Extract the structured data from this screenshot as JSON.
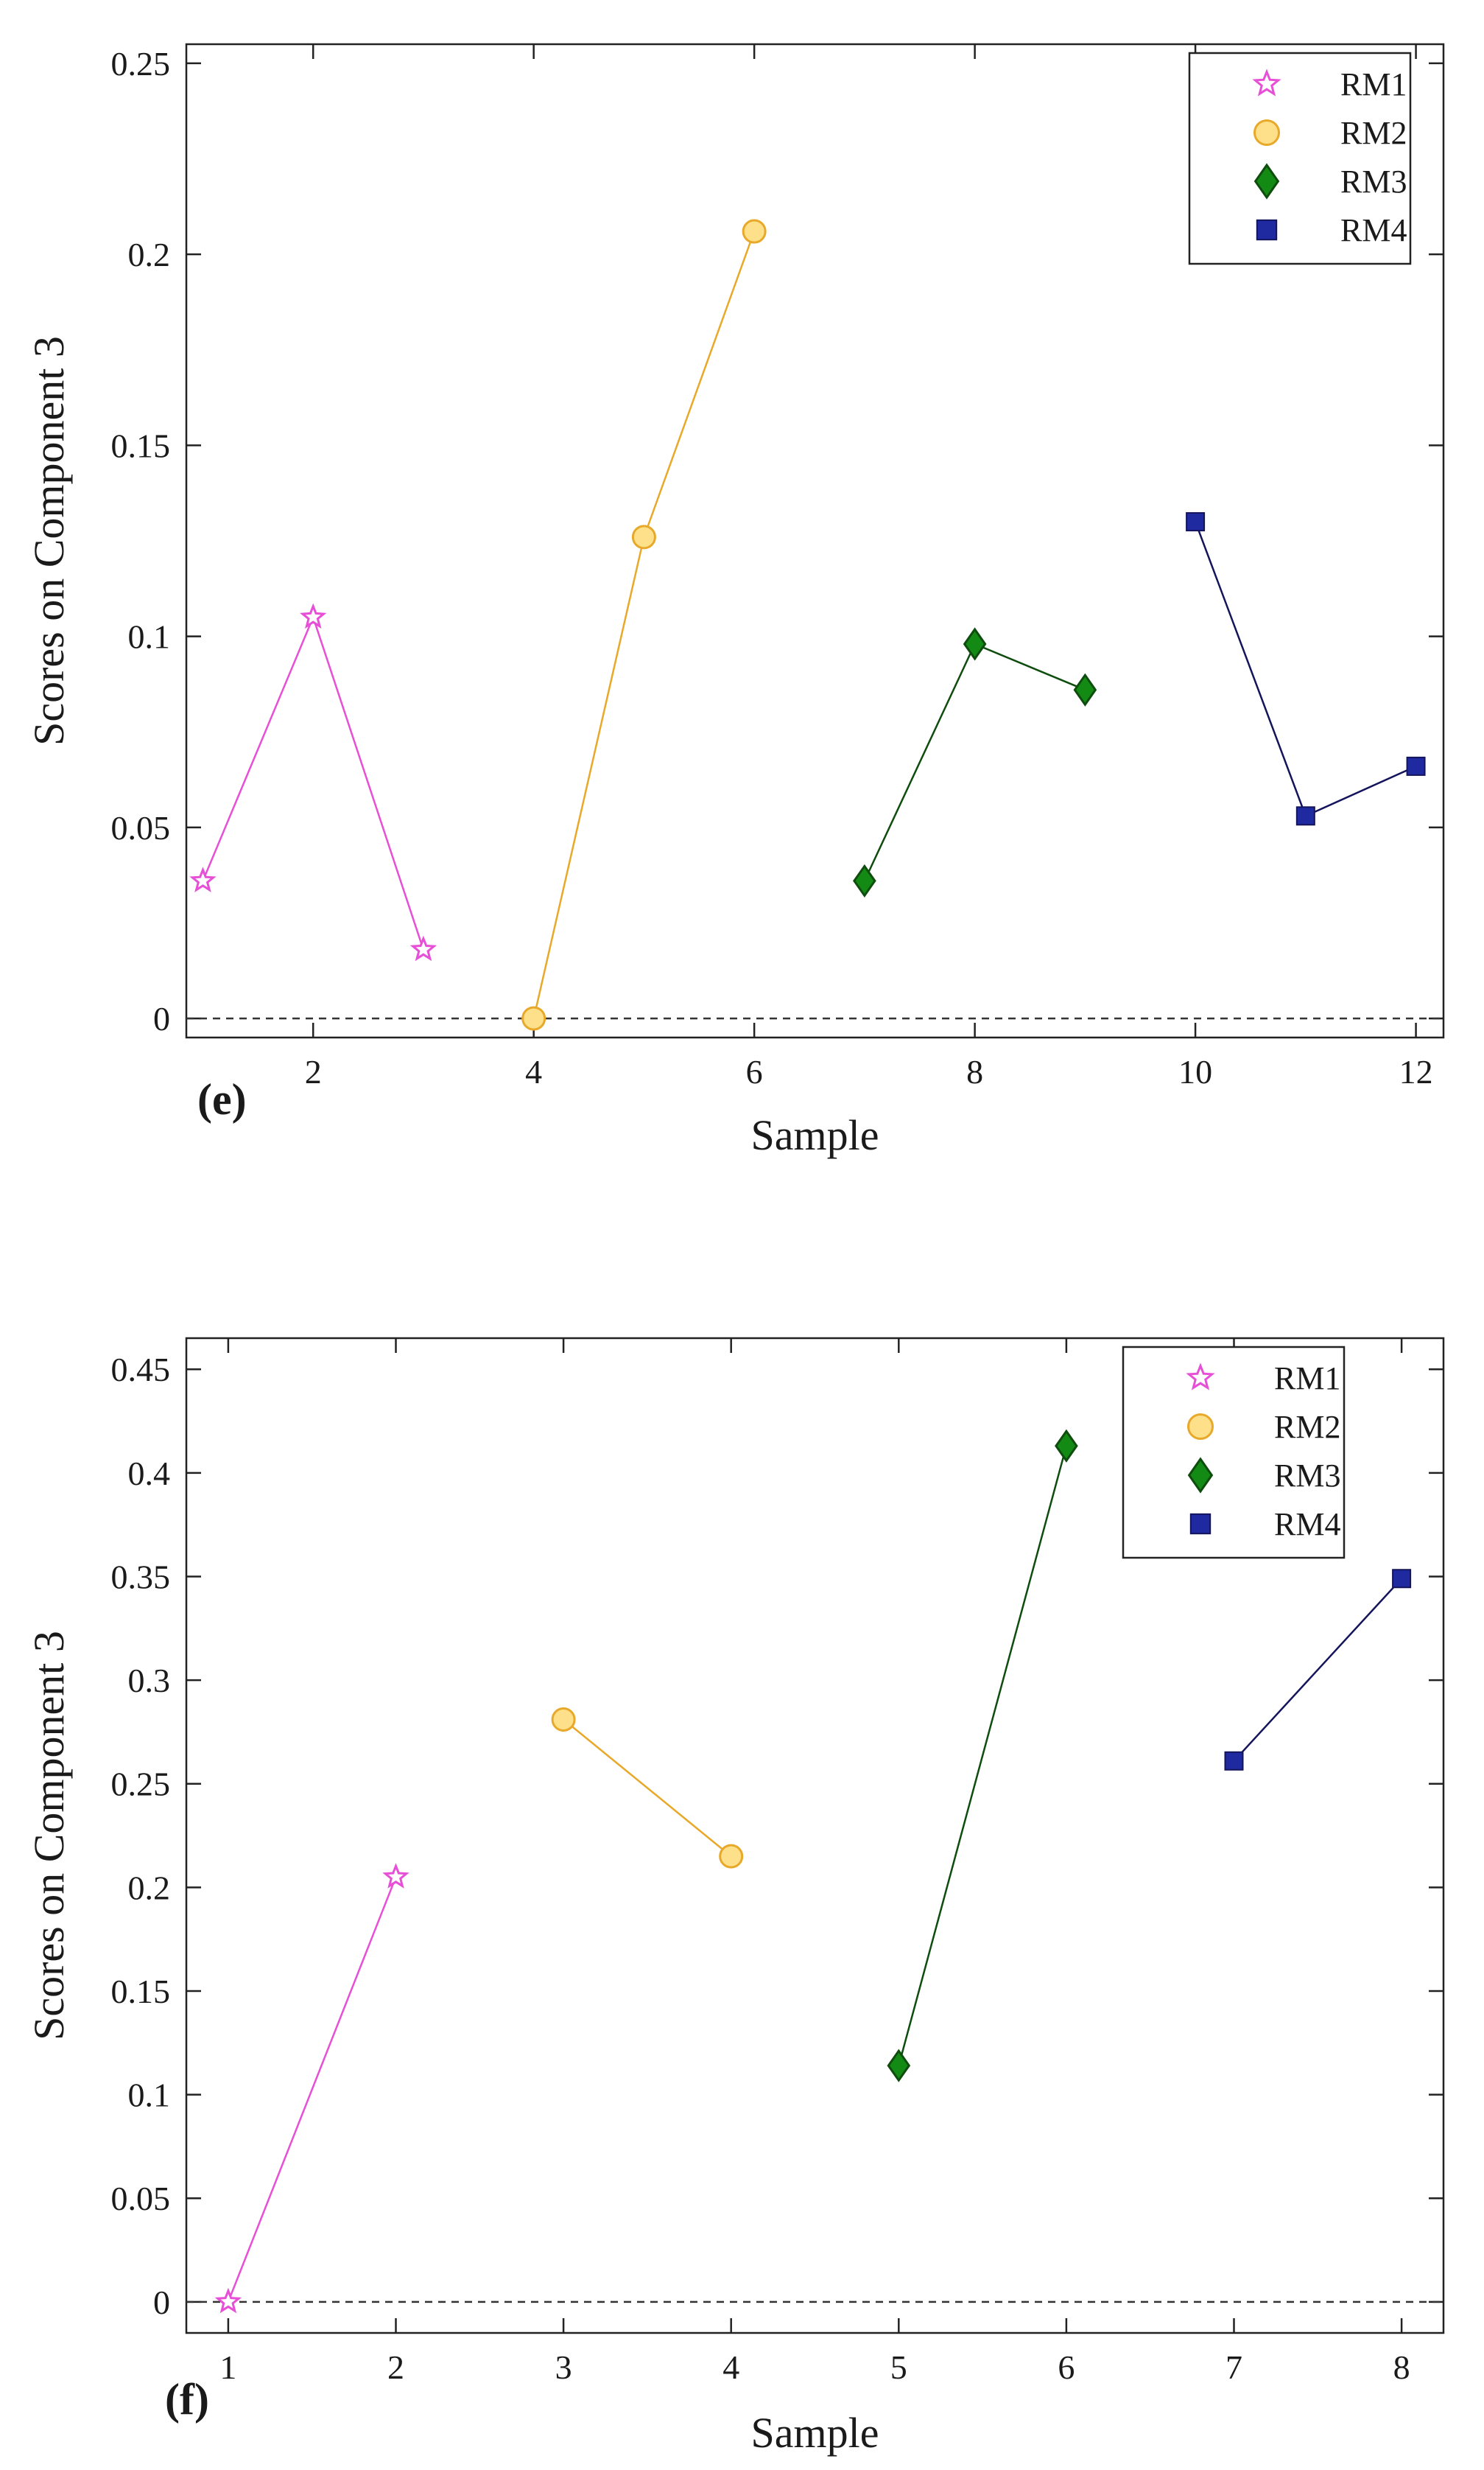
{
  "chart_data": [
    {
      "type": "line",
      "panel_label": "(e)",
      "xlabel": "Sample",
      "ylabel": "Scores on Component 3",
      "xlim": [
        0.85,
        12.25
      ],
      "ylim": [
        -0.005,
        0.255
      ],
      "xticks": [
        2,
        4,
        6,
        8,
        10,
        12
      ],
      "xtick_labels": [
        "2",
        "4",
        "6",
        "8",
        "10",
        "12"
      ],
      "yticks": [
        0,
        0.05,
        0.1,
        0.15,
        0.2,
        0.25
      ],
      "ytick_labels": [
        "0",
        "0.05",
        "0.1",
        "0.15",
        "0.2",
        "0.25"
      ],
      "zero_line": true,
      "legend_position": "top-right",
      "series": [
        {
          "name": "RM1",
          "marker": "star",
          "color": "#e64fd6",
          "fill": "#ffffff",
          "x": [
            1,
            2,
            3
          ],
          "y": [
            0.036,
            0.105,
            0.018
          ]
        },
        {
          "name": "RM2",
          "marker": "circle",
          "color": "#e8a92a",
          "fill": "#ffe08a",
          "x": [
            4,
            5,
            6
          ],
          "y": [
            0.0,
            0.126,
            0.206
          ]
        },
        {
          "name": "RM3",
          "marker": "diamond",
          "color": "#0e4d0e",
          "fill": "#138a13",
          "x": [
            7,
            8,
            9
          ],
          "y": [
            0.036,
            0.098,
            0.086
          ]
        },
        {
          "name": "RM4",
          "marker": "square",
          "color": "#14145c",
          "fill": "#1f2aa0",
          "x": [
            10,
            11,
            12
          ],
          "y": [
            0.13,
            0.053,
            0.066
          ]
        }
      ]
    },
    {
      "type": "line",
      "panel_label": "(f)",
      "xlabel": "Sample",
      "ylabel": "Scores on Component 3",
      "xlim": [
        0.75,
        8.25
      ],
      "ylim": [
        -0.015,
        0.465
      ],
      "xticks": [
        1,
        2,
        3,
        4,
        5,
        6,
        7,
        8
      ],
      "xtick_labels": [
        "1",
        "2",
        "3",
        "4",
        "5",
        "6",
        "7",
        "8"
      ],
      "yticks": [
        0,
        0.05,
        0.1,
        0.15,
        0.2,
        0.25,
        0.3,
        0.35,
        0.4,
        0.45
      ],
      "ytick_labels": [
        "0",
        "0.05",
        "0.1",
        "0.15",
        "0.2",
        "0.25",
        "0.3",
        "0.35",
        "0.4",
        "0.45"
      ],
      "zero_line": true,
      "legend_position": "top-right",
      "series": [
        {
          "name": "RM1",
          "marker": "star",
          "color": "#e64fd6",
          "fill": "#ffffff",
          "x": [
            1,
            2
          ],
          "y": [
            0.0,
            0.205
          ]
        },
        {
          "name": "RM2",
          "marker": "circle",
          "color": "#e8a92a",
          "fill": "#ffe08a",
          "x": [
            3,
            4
          ],
          "y": [
            0.281,
            0.215
          ]
        },
        {
          "name": "RM3",
          "marker": "diamond",
          "color": "#0e4d0e",
          "fill": "#138a13",
          "x": [
            5,
            6
          ],
          "y": [
            0.114,
            0.413
          ]
        },
        {
          "name": "RM4",
          "marker": "square",
          "color": "#14145c",
          "fill": "#1f2aa0",
          "x": [
            7,
            8
          ],
          "y": [
            0.261,
            0.349
          ]
        }
      ]
    }
  ]
}
